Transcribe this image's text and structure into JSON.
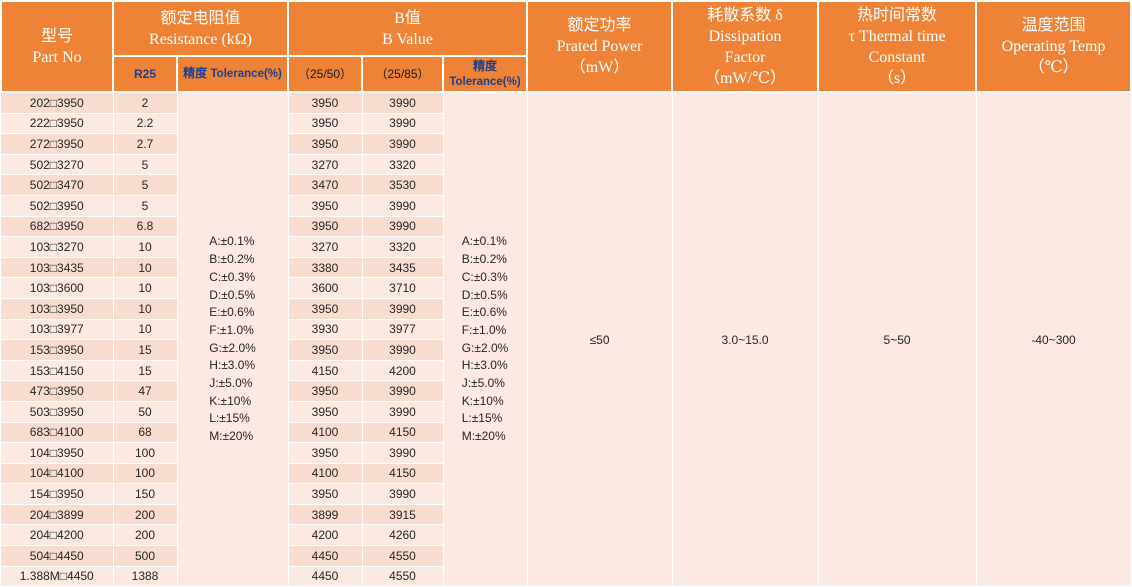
{
  "headers": {
    "part_no": [
      "型号",
      "Part No"
    ],
    "resistance": [
      "额定电阻值",
      "Resistance (kΩ)"
    ],
    "b_value": [
      "B值",
      "B Value"
    ],
    "power": [
      "额定功率",
      "Prated Power",
      "（mW）"
    ],
    "dissipation": [
      "耗散系数 δ",
      "Dissipation",
      "Factor",
      "（mW/℃）"
    ],
    "thermal": [
      "热时间常数",
      "τ Thermal time",
      "Constant",
      "（s）"
    ],
    "temp": [
      "温度范围",
      "Operating Temp",
      "（℃）"
    ],
    "r25": "R25",
    "tolerance_cn": "精度",
    "tolerance_en": "Tolerance(%)",
    "b2550": "（25/50）",
    "b2585": "（25/85）"
  },
  "rows": [
    {
      "part": "202□3950",
      "r25": "2",
      "b50": "3950",
      "b85": "3990"
    },
    {
      "part": "222□3950",
      "r25": "2.2",
      "b50": "3950",
      "b85": "3990"
    },
    {
      "part": "272□3950",
      "r25": "2.7",
      "b50": "3950",
      "b85": "3990"
    },
    {
      "part": "502□3270",
      "r25": "5",
      "b50": "3270",
      "b85": "3320"
    },
    {
      "part": "502□3470",
      "r25": "5",
      "b50": "3470",
      "b85": "3530"
    },
    {
      "part": "502□3950",
      "r25": "5",
      "b50": "3950",
      "b85": "3990"
    },
    {
      "part": "682□3950",
      "r25": "6.8",
      "b50": "3950",
      "b85": "3990"
    },
    {
      "part": "103□3270",
      "r25": "10",
      "b50": "3270",
      "b85": "3320"
    },
    {
      "part": "103□3435",
      "r25": "10",
      "b50": "3380",
      "b85": "3435"
    },
    {
      "part": "103□3600",
      "r25": "10",
      "b50": "3600",
      "b85": "3710"
    },
    {
      "part": "103□3950",
      "r25": "10",
      "b50": "3950",
      "b85": "3990"
    },
    {
      "part": "103□3977",
      "r25": "10",
      "b50": "3930",
      "b85": "3977"
    },
    {
      "part": "153□3950",
      "r25": "15",
      "b50": "3950",
      "b85": "3990"
    },
    {
      "part": "153□4150",
      "r25": "15",
      "b50": "4150",
      "b85": "4200"
    },
    {
      "part": "473□3950",
      "r25": "47",
      "b50": "3950",
      "b85": "3990"
    },
    {
      "part": "503□3950",
      "r25": "50",
      "b50": "3950",
      "b85": "3990"
    },
    {
      "part": "683□4100",
      "r25": "68",
      "b50": "4100",
      "b85": "4150"
    },
    {
      "part": "104□3950",
      "r25": "100",
      "b50": "3950",
      "b85": "3990"
    },
    {
      "part": "104□4100",
      "r25": "100",
      "b50": "4100",
      "b85": "4150"
    },
    {
      "part": "154□3950",
      "r25": "150",
      "b50": "3950",
      "b85": "3990"
    },
    {
      "part": "204□3899",
      "r25": "200",
      "b50": "3899",
      "b85": "3915"
    },
    {
      "part": "204□4200",
      "r25": "200",
      "b50": "4200",
      "b85": "4260"
    },
    {
      "part": "504□4450",
      "r25": "500",
      "b50": "4450",
      "b85": "4550"
    },
    {
      "part": "1.388M□4450",
      "r25": "1388",
      "b50": "4450",
      "b85": "4550"
    }
  ],
  "tolerance_res": [
    "A:±0.1%",
    "B:±0.2%",
    "C:±0.3%",
    "D:±0.5%",
    "E:±0.6%",
    "F:±1.0%",
    "G:±2.0%",
    "H:±3.0%",
    "J:±5.0%",
    "K:±10%",
    "L:±15%",
    "M:±20%"
  ],
  "tolerance_b": [
    "A:±0.1%",
    "B:±0.2%",
    "C:±0.3%",
    "D:±0.5%",
    "E:±0.6%",
    "F:±1.0%",
    "G:±2.0%",
    "H:±3.0%",
    "J:±5.0%",
    "K:±10%",
    "L:±15%",
    "M:±20%"
  ],
  "power_value": "≤50",
  "dissipation_value": "3.0~15.0",
  "thermal_value": "5~50",
  "temp_value": "-40~300"
}
